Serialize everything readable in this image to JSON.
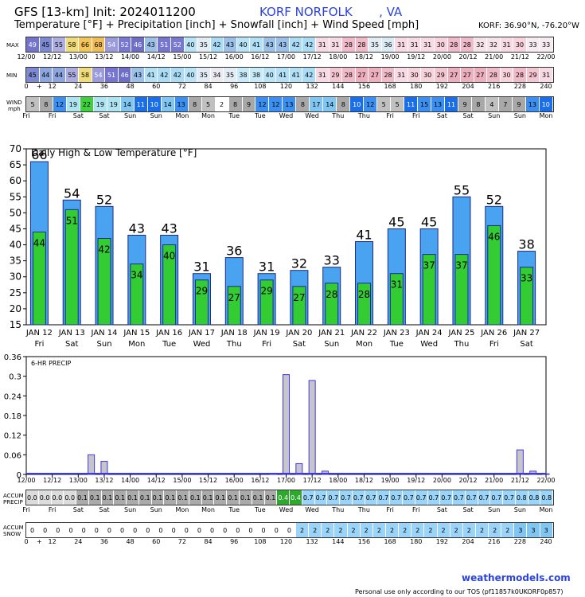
{
  "header": {
    "line1": "GFS [13-km] Init: 2024011200",
    "location": "KORF NORFOLK       , VA",
    "line2": "Temperature [°F] + Precipitation [inch] + Snowfall [inch] + Wind Speed [mph]",
    "coords": "KORF: 36.90°N, -76.20°W"
  },
  "labels": {
    "max": "MAX",
    "min": "MIN",
    "wind": "WIND",
    "wind_unit": "mph",
    "accum_precip": "ACCUM PRECIP",
    "accum_snow": "ACCUM SNOW",
    "precip_chart_label": "6-HR PRECIP"
  },
  "max_values": [
    49,
    45,
    55,
    58,
    66,
    68,
    54,
    52,
    46,
    43,
    51,
    52,
    40,
    35,
    42,
    43,
    40,
    41,
    43,
    43,
    42,
    42,
    31,
    31,
    28,
    28,
    35,
    36,
    31,
    31,
    31,
    30,
    28,
    28,
    32,
    32,
    31,
    30,
    33,
    33
  ],
  "min_values": [
    45,
    44,
    44,
    55,
    58,
    54,
    51,
    46,
    43,
    41,
    42,
    42,
    40,
    35,
    34,
    35,
    38,
    38,
    40,
    41,
    41,
    42,
    31,
    29,
    28,
    27,
    27,
    28,
    31,
    30,
    30,
    29,
    27,
    27,
    27,
    28,
    30,
    28,
    29,
    31
  ],
  "wind_values": [
    5,
    8,
    12,
    19,
    22,
    19,
    19,
    14,
    11,
    10,
    14,
    13,
    8,
    5,
    2,
    8,
    9,
    12,
    12,
    13,
    8,
    17,
    14,
    8,
    10,
    12,
    5,
    5,
    11,
    15,
    13,
    11,
    9,
    8,
    4,
    7,
    9,
    13,
    10
  ],
  "accum_precip_values": [
    "0.0",
    "0.0",
    "0.0",
    "0.0",
    "0.1",
    "0.1",
    "0.1",
    "0.1",
    "0.1",
    "0.1",
    "0.1",
    "0.1",
    "0.1",
    "0.1",
    "0.1",
    "0.1",
    "0.1",
    "0.1",
    "0.1",
    "0.1",
    "0.4",
    "0.4",
    "0.7",
    "0.7",
    "0.7",
    "0.7",
    "0.7",
    "0.7",
    "0.7",
    "0.7",
    "0.7",
    "0.7",
    "0.7",
    "0.7",
    "0.7",
    "0.7",
    "0.7",
    "0.7",
    "0.7",
    "0.8",
    "0.8",
    "0.8"
  ],
  "accum_snow_values": [
    "0",
    "0",
    "0",
    "0",
    "0",
    "0",
    "0",
    "0",
    "0",
    "0",
    "0",
    "0",
    "0",
    "0",
    "0",
    "0",
    "0",
    "0",
    "0",
    "0",
    "0",
    "2",
    "2",
    "2",
    "2",
    "2",
    "2",
    "2",
    "2",
    "2",
    "2",
    "2",
    "2",
    "2",
    "2",
    "2",
    "2",
    "2",
    "3",
    "3",
    "3"
  ],
  "date_ticks": [
    "12/00",
    "12/12",
    "13/00",
    "13/12",
    "14/00",
    "14/12",
    "15/00",
    "15/12",
    "16/00",
    "16/12",
    "17/00",
    "17/12",
    "18/00",
    "18/12",
    "19/00",
    "19/12",
    "20/00",
    "20/12",
    "21/00",
    "21/12",
    "22/00"
  ],
  "hour_ticks": [
    "0",
    "+",
    "12",
    "24",
    "36",
    "48",
    "60",
    "72",
    "84",
    "96",
    "108",
    "120",
    "132",
    "144",
    "156",
    "168",
    "180",
    "192",
    "204",
    "216",
    "228",
    "240"
  ],
  "day_ticks": [
    "Fri",
    "Fri",
    "Sat",
    "Sat",
    "Sun",
    "Sun",
    "Mon",
    "Mon",
    "Tue",
    "Tue",
    "Wed",
    "Wed",
    "Thu",
    "Thu",
    "Fri",
    "Fri",
    "Sat",
    "Sat",
    "Sun",
    "Sun",
    "Mon"
  ],
  "chart_data": [
    {
      "type": "bar",
      "title": "Daily High & Low Temperature [°F]",
      "categories": [
        "JAN 12",
        "JAN 13",
        "JAN 14",
        "JAN 15",
        "JAN 16",
        "JAN 17",
        "JAN 18",
        "JAN 19",
        "JAN 20",
        "JAN 21",
        "JAN 22",
        "JAN 23",
        "JAN 24",
        "JAN 25",
        "JAN 26",
        "JAN 27"
      ],
      "weekdays": [
        "Fri",
        "Sat",
        "Sun",
        "Mon",
        "Tue",
        "Wed",
        "Thu",
        "Fri",
        "Sat",
        "Sun",
        "Mon",
        "Tue",
        "Wed",
        "Thu",
        "Fri",
        "Sat"
      ],
      "series": [
        {
          "name": "High",
          "color": "#4aa3f0",
          "values": [
            66,
            54,
            52,
            43,
            43,
            31,
            36,
            31,
            32,
            33,
            41,
            45,
            45,
            55,
            52,
            38
          ]
        },
        {
          "name": "Low",
          "color": "#33cc33",
          "values": [
            44,
            51,
            42,
            34,
            40,
            29,
            27,
            29,
            27,
            28,
            28,
            31,
            37,
            37,
            46,
            33
          ]
        }
      ],
      "ylim": [
        15,
        70
      ],
      "yticks": [
        15,
        20,
        25,
        30,
        35,
        40,
        45,
        50,
        55,
        60,
        65,
        70
      ]
    },
    {
      "type": "bar",
      "title": "6-HR PRECIP",
      "x_hours": [
        0,
        6,
        12,
        18,
        24,
        30,
        36,
        42,
        48,
        54,
        60,
        66,
        72,
        78,
        84,
        90,
        96,
        102,
        108,
        114,
        120,
        126,
        132,
        138,
        144,
        150,
        156,
        162,
        168,
        174,
        180,
        186,
        192,
        198,
        204,
        210,
        216,
        222,
        228,
        234,
        240
      ],
      "values": [
        0,
        0,
        0,
        0,
        0,
        0.06,
        0.04,
        0,
        0,
        0,
        0,
        0,
        0,
        0,
        0,
        0,
        0,
        0,
        0,
        0.003,
        0.305,
        0.033,
        0.287,
        0.01,
        0,
        0,
        0,
        0,
        0,
        0,
        0,
        0,
        0,
        0,
        0,
        0,
        0,
        0,
        0.075,
        0.01,
        0.002
      ],
      "ylim": [
        0,
        0.36
      ],
      "yticks": [
        "0",
        "0.06",
        "0.12",
        "0.18",
        "0.24",
        "0.3",
        "0.36"
      ],
      "bar_color": "#c8c4cc",
      "edge_color": "#3a3adf"
    }
  ],
  "footer": {
    "brand": "weathermodels.com",
    "tos": "Personal use only according to our TOS (pf11857k0UKORF0p857)"
  }
}
